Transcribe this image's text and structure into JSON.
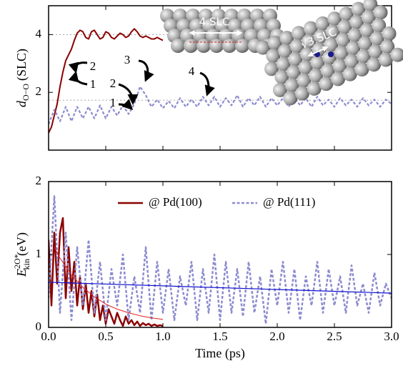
{
  "chart_data": [
    {
      "type": "line",
      "ylabel": {
        "symbol": "d",
        "subscript": "O−O",
        "unit": "(SLC)"
      },
      "xlim": [
        0,
        3
      ],
      "ylim": [
        0,
        5
      ],
      "xticks": [
        0,
        0.5,
        1,
        1.5,
        2,
        2.5,
        3
      ],
      "xtick_labels": false,
      "yticks": [
        2,
        4
      ],
      "reference_lines": [
        4,
        1.73
      ],
      "annotations": [
        "2",
        "1",
        "3",
        "2",
        "1",
        "4"
      ],
      "inset_labels": [
        "4 SLC",
        "√3 SLC"
      ],
      "series": [
        {
          "color": "#8b0000",
          "width": 2,
          "dash": "solid",
          "x": [
            0,
            0.025,
            0.05,
            0.075,
            0.1,
            0.125,
            0.15,
            0.175,
            0.2,
            0.225,
            0.25,
            0.275,
            0.3,
            0.325,
            0.35,
            0.375,
            0.4,
            0.425,
            0.45,
            0.475,
            0.5,
            0.525,
            0.55,
            0.575,
            0.6,
            0.625,
            0.65,
            0.675,
            0.7,
            0.725,
            0.75,
            0.775,
            0.8,
            0.825,
            0.85,
            0.875,
            0.9,
            0.925,
            0.95,
            0.975,
            1.0
          ],
          "values": [
            0.6,
            0.8,
            1.2,
            1.6,
            2.2,
            2.7,
            3.1,
            3.3,
            3.5,
            3.8,
            4.05,
            4.15,
            4.1,
            3.9,
            3.85,
            4.1,
            4.15,
            4.0,
            3.85,
            3.9,
            4.1,
            4.05,
            3.9,
            3.85,
            3.95,
            4.05,
            4.0,
            3.9,
            3.95,
            4.1,
            4.2,
            4.1,
            3.95,
            3.9,
            3.95,
            3.9,
            3.85,
            3.85,
            3.9,
            3.85,
            3.8
          ]
        },
        {
          "color": "#8c8cd0",
          "width": 2.2,
          "dash": "dotted",
          "x": [
            0,
            0.05,
            0.1,
            0.15,
            0.2,
            0.25,
            0.3,
            0.35,
            0.4,
            0.45,
            0.5,
            0.55,
            0.6,
            0.65,
            0.7,
            0.75,
            0.8,
            0.85,
            0.9,
            0.95,
            1.0,
            1.05,
            1.1,
            1.15,
            1.2,
            1.25,
            1.3,
            1.35,
            1.4,
            1.45,
            1.5,
            1.55,
            1.6,
            1.65,
            1.7,
            1.75,
            1.8,
            1.85,
            1.9,
            1.95,
            2.0,
            2.05,
            2.1,
            2.15,
            2.2,
            2.25,
            2.3,
            2.35,
            2.4,
            2.45,
            2.5,
            2.55,
            2.6,
            2.65,
            2.7,
            2.75,
            2.8,
            2.85,
            2.9,
            2.95,
            3.0
          ],
          "values": [
            0.9,
            1.4,
            1.0,
            1.5,
            1.0,
            1.5,
            1.1,
            1.5,
            1.1,
            1.55,
            1.1,
            1.5,
            1.2,
            1.55,
            1.25,
            1.6,
            2.2,
            1.9,
            1.5,
            1.75,
            1.45,
            1.7,
            1.45,
            1.8,
            1.5,
            1.75,
            1.5,
            1.85,
            1.55,
            1.85,
            1.5,
            1.8,
            1.55,
            1.9,
            1.5,
            1.8,
            1.55,
            1.85,
            1.5,
            1.8,
            1.55,
            1.8,
            1.5,
            1.85,
            1.55,
            1.8,
            1.5,
            1.85,
            1.55,
            1.75,
            1.5,
            1.8,
            1.55,
            1.75,
            1.5,
            1.8,
            1.55,
            1.75,
            1.5,
            1.75,
            1.6
          ]
        }
      ]
    },
    {
      "type": "line",
      "ylabel": {
        "symbol": "E",
        "superscript": "2O*",
        "subscript": "kin",
        "unit": "(eV)"
      },
      "xlabel": "Time (ps)",
      "xlim": [
        0,
        3
      ],
      "ylim": [
        0,
        2
      ],
      "xticks": [
        {
          "value": 0,
          "label": "0.0"
        },
        0.5,
        {
          "value": 1,
          "label": "1.0"
        },
        1.5,
        {
          "value": 2,
          "label": "2.0"
        },
        2.5,
        {
          "value": 3,
          "label": "3.0"
        }
      ],
      "yticks": [
        0,
        1,
        2
      ],
      "legend": "upper center",
      "series": [
        {
          "name": "@ Pd(100)",
          "color": "#8b0000",
          "width": 2.5,
          "dash": "solid",
          "x": [
            0,
            0.025,
            0.05,
            0.075,
            0.1,
            0.125,
            0.15,
            0.175,
            0.2,
            0.225,
            0.25,
            0.275,
            0.3,
            0.325,
            0.35,
            0.375,
            0.4,
            0.425,
            0.45,
            0.475,
            0.5,
            0.525,
            0.55,
            0.575,
            0.6,
            0.625,
            0.65,
            0.675,
            0.7,
            0.725,
            0.75,
            0.775,
            0.8,
            0.825,
            0.85,
            0.875,
            0.9,
            0.925,
            0.95,
            0.975,
            1.0
          ],
          "values": [
            1.2,
            0.3,
            1.3,
            0.6,
            1.3,
            1.5,
            0.4,
            1.1,
            0.5,
            0.9,
            0.3,
            0.7,
            0.25,
            0.6,
            0.2,
            0.5,
            0.15,
            0.45,
            0.1,
            0.3,
            0.05,
            0.25,
            0.15,
            0.05,
            0.2,
            0.1,
            0.02,
            0.15,
            0.05,
            0.1,
            0.03,
            0.08,
            0.02,
            0.06,
            0.03,
            0.05,
            0.02,
            0.04,
            0.02,
            0.03,
            0.02
          ]
        },
        {
          "name": "@ Pd(111)",
          "color": "#8c8cd0",
          "width": 2.5,
          "dash": "dotted",
          "x": [
            0,
            0.05,
            0.1,
            0.15,
            0.2,
            0.25,
            0.3,
            0.35,
            0.4,
            0.45,
            0.5,
            0.55,
            0.6,
            0.65,
            0.7,
            0.75,
            0.8,
            0.85,
            0.9,
            0.95,
            1.0,
            1.05,
            1.1,
            1.15,
            1.2,
            1.25,
            1.3,
            1.35,
            1.4,
            1.45,
            1.5,
            1.55,
            1.6,
            1.65,
            1.7,
            1.75,
            1.8,
            1.85,
            1.9,
            1.95,
            2.0,
            2.05,
            2.1,
            2.15,
            2.2,
            2.25,
            2.3,
            2.35,
            2.4,
            2.45,
            2.5,
            2.55,
            2.6,
            2.65,
            2.7,
            2.75,
            2.8,
            2.85,
            2.9,
            2.95,
            3.0
          ],
          "values": [
            0.4,
            1.8,
            0.2,
            1.3,
            0.1,
            1.1,
            0.3,
            1.2,
            0.2,
            0.9,
            0.1,
            0.8,
            0.3,
            1.0,
            0.1,
            0.7,
            0.2,
            1.1,
            0.1,
            0.9,
            0.2,
            0.8,
            0.1,
            0.7,
            0.3,
            0.9,
            0.1,
            0.8,
            0.2,
            1.0,
            0.1,
            0.9,
            0.2,
            0.8,
            0.15,
            0.9,
            0.2,
            0.7,
            0.05,
            0.8,
            0.3,
            0.9,
            0.2,
            0.8,
            0.1,
            0.7,
            0.3,
            0.9,
            0.2,
            0.8,
            0.3,
            0.7,
            0.2,
            0.85,
            0.3,
            0.6,
            0.2,
            0.75,
            0.3,
            0.6,
            0.4
          ]
        },
        {
          "color": "#e02020",
          "width": 1,
          "dash": "solid",
          "x": [
            0.05,
            0.1,
            0.2,
            0.3,
            0.4,
            0.5,
            0.6,
            0.7,
            0.8,
            0.9,
            1.0
          ],
          "values": [
            1.1,
            0.95,
            0.72,
            0.55,
            0.42,
            0.32,
            0.25,
            0.2,
            0.16,
            0.13,
            0.11
          ]
        },
        {
          "color": "#1010d0",
          "width": 1.2,
          "dash": "solid",
          "x": [
            0,
            3
          ],
          "values": [
            0.62,
            0.47
          ]
        }
      ]
    }
  ]
}
